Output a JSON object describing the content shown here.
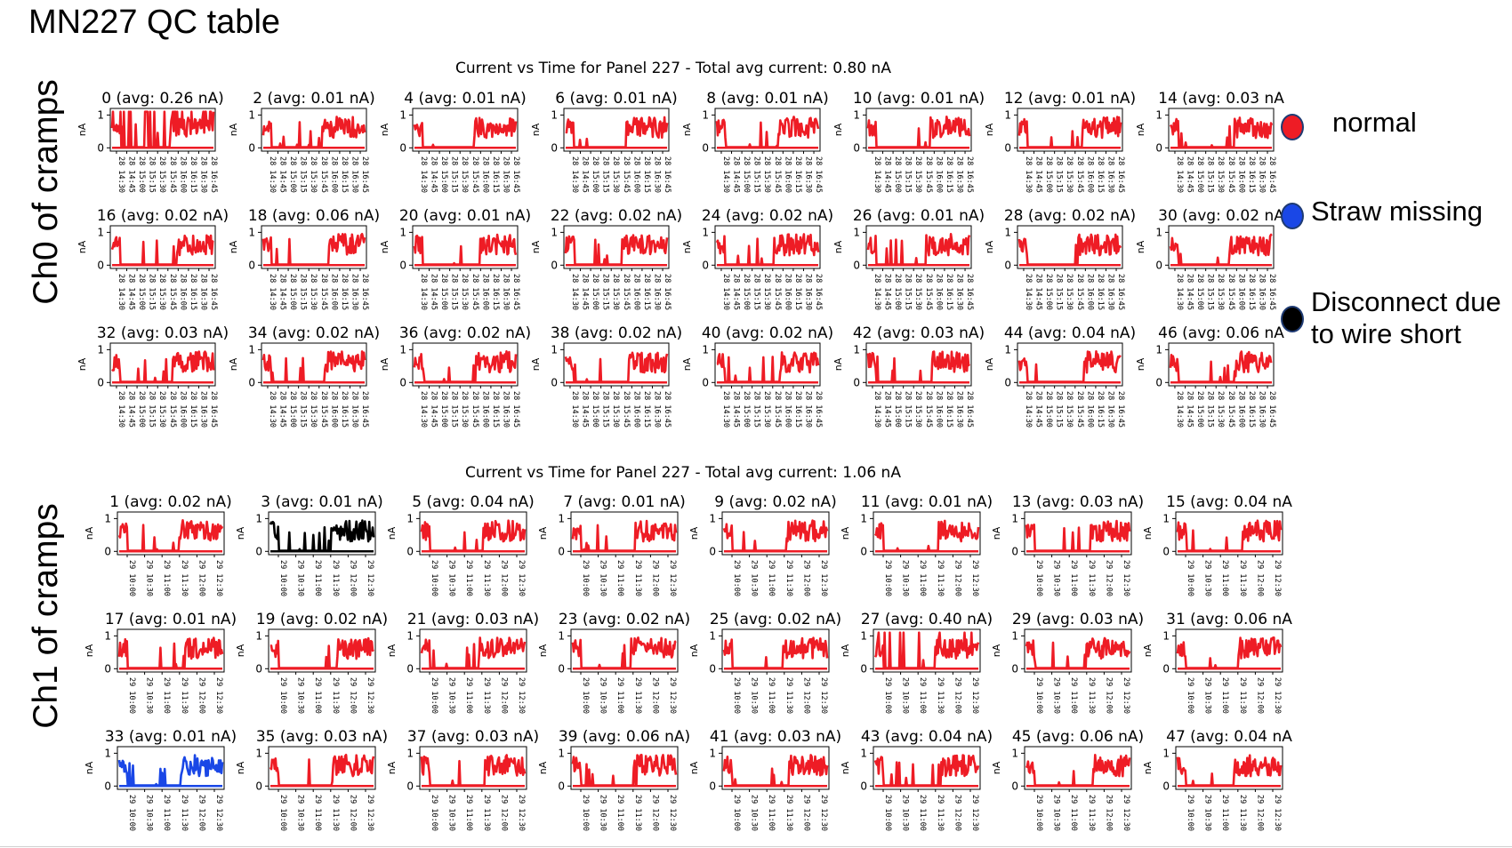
{
  "title": "MN227 QC table",
  "legend": [
    {
      "label": "normal",
      "color": "#ee1c25"
    },
    {
      "label": "Straw missing",
      "color": "#1a47e6"
    },
    {
      "label": "Disconnect due to wire short",
      "color": "#000000"
    }
  ],
  "chart_data": [
    {
      "type": "line",
      "group_label": "Ch0 of cramps",
      "title": "Current vs Time for Panel 227 - Total avg current: 0.80 nA",
      "ylabel": "nA",
      "yticks": [
        "0",
        "1"
      ],
      "ylim": [
        -0.1,
        1.2
      ],
      "xticks": [
        "28 14:30",
        "28 14:45",
        "28 15:00",
        "28 15:15",
        "28 15:30",
        "28 15:45",
        "28 16:00",
        "28 16:15",
        "28 16:30",
        "28 16:45"
      ],
      "panels": [
        {
          "title": "0 (avg: 0.26 nA)",
          "channel": 0,
          "avg_nA": 0.26,
          "status": "normal"
        },
        {
          "title": "2 (avg: 0.01 nA)",
          "channel": 2,
          "avg_nA": 0.01,
          "status": "normal"
        },
        {
          "title": "4 (avg: 0.01 nA)",
          "channel": 4,
          "avg_nA": 0.01,
          "status": "normal"
        },
        {
          "title": "6 (avg: 0.01 nA)",
          "channel": 6,
          "avg_nA": 0.01,
          "status": "normal"
        },
        {
          "title": "8 (avg: 0.01 nA)",
          "channel": 8,
          "avg_nA": 0.01,
          "status": "normal"
        },
        {
          "title": "10 (avg: 0.01 nA)",
          "channel": 10,
          "avg_nA": 0.01,
          "status": "normal"
        },
        {
          "title": "12 (avg: 0.01 nA)",
          "channel": 12,
          "avg_nA": 0.01,
          "status": "normal"
        },
        {
          "title": "14 (avg: 0.03 nA",
          "channel": 14,
          "avg_nA": 0.03,
          "status": "normal"
        },
        {
          "title": "16 (avg: 0.02 nA)",
          "channel": 16,
          "avg_nA": 0.02,
          "status": "normal"
        },
        {
          "title": "18 (avg: 0.06 nA)",
          "channel": 18,
          "avg_nA": 0.06,
          "status": "normal"
        },
        {
          "title": "20 (avg: 0.01 nA)",
          "channel": 20,
          "avg_nA": 0.01,
          "status": "normal"
        },
        {
          "title": "22 (avg: 0.02 nA)",
          "channel": 22,
          "avg_nA": 0.02,
          "status": "normal"
        },
        {
          "title": "24 (avg: 0.02 nA)",
          "channel": 24,
          "avg_nA": 0.02,
          "status": "normal"
        },
        {
          "title": "26 (avg: 0.01 nA)",
          "channel": 26,
          "avg_nA": 0.01,
          "status": "normal"
        },
        {
          "title": "28 (avg: 0.02 nA)",
          "channel": 28,
          "avg_nA": 0.02,
          "status": "normal"
        },
        {
          "title": "30 (avg: 0.02 nA",
          "channel": 30,
          "avg_nA": 0.02,
          "status": "normal"
        },
        {
          "title": "32 (avg: 0.03 nA)",
          "channel": 32,
          "avg_nA": 0.03,
          "status": "normal"
        },
        {
          "title": "34 (avg: 0.02 nA)",
          "channel": 34,
          "avg_nA": 0.02,
          "status": "normal"
        },
        {
          "title": "36 (avg: 0.02 nA)",
          "channel": 36,
          "avg_nA": 0.02,
          "status": "normal"
        },
        {
          "title": "38 (avg: 0.02 nA)",
          "channel": 38,
          "avg_nA": 0.02,
          "status": "normal"
        },
        {
          "title": "40 (avg: 0.02 nA)",
          "channel": 40,
          "avg_nA": 0.02,
          "status": "normal"
        },
        {
          "title": "42 (avg: 0.03 nA)",
          "channel": 42,
          "avg_nA": 0.03,
          "status": "normal"
        },
        {
          "title": "44 (avg: 0.04 nA)",
          "channel": 44,
          "avg_nA": 0.04,
          "status": "normal"
        },
        {
          "title": "46 (avg: 0.06 nA",
          "channel": 46,
          "avg_nA": 0.06,
          "status": "normal"
        }
      ]
    },
    {
      "type": "line",
      "group_label": "Ch1 of cramps",
      "title": "Current vs Time for Panel 227 - Total avg current: 1.06 nA",
      "ylabel": "nA",
      "yticks": [
        "0",
        "1"
      ],
      "ylim": [
        -0.1,
        1.2
      ],
      "xticks": [
        "29 10:00",
        "29 10:30",
        "29 11:00",
        "29 11:30",
        "29 12:00",
        "29 12:30"
      ],
      "panels": [
        {
          "title": "1 (avg: 0.02 nA)",
          "channel": 1,
          "avg_nA": 0.02,
          "status": "normal"
        },
        {
          "title": "3 (avg: 0.01 nA)",
          "channel": 3,
          "avg_nA": 0.01,
          "status": "disconnect"
        },
        {
          "title": "5 (avg: 0.04 nA)",
          "channel": 5,
          "avg_nA": 0.04,
          "status": "normal"
        },
        {
          "title": "7 (avg: 0.01 nA)",
          "channel": 7,
          "avg_nA": 0.01,
          "status": "normal"
        },
        {
          "title": "9 (avg: 0.02 nA)",
          "channel": 9,
          "avg_nA": 0.02,
          "status": "normal"
        },
        {
          "title": "11 (avg: 0.01 nA)",
          "channel": 11,
          "avg_nA": 0.01,
          "status": "normal"
        },
        {
          "title": "13 (avg: 0.03 nA)",
          "channel": 13,
          "avg_nA": 0.03,
          "status": "normal"
        },
        {
          "title": "15 (avg: 0.04 nA",
          "channel": 15,
          "avg_nA": 0.04,
          "status": "normal"
        },
        {
          "title": "17 (avg: 0.01 nA)",
          "channel": 17,
          "avg_nA": 0.01,
          "status": "normal"
        },
        {
          "title": "19 (avg: 0.02 nA)",
          "channel": 19,
          "avg_nA": 0.02,
          "status": "normal"
        },
        {
          "title": "21 (avg: 0.03 nA)",
          "channel": 21,
          "avg_nA": 0.03,
          "status": "normal"
        },
        {
          "title": "23 (avg: 0.02 nA)",
          "channel": 23,
          "avg_nA": 0.02,
          "status": "normal"
        },
        {
          "title": "25 (avg: 0.02 nA)",
          "channel": 25,
          "avg_nA": 0.02,
          "status": "normal"
        },
        {
          "title": "27 (avg: 0.40 nA)",
          "channel": 27,
          "avg_nA": 0.4,
          "status": "normal"
        },
        {
          "title": "29 (avg: 0.03 nA)",
          "channel": 29,
          "avg_nA": 0.03,
          "status": "normal"
        },
        {
          "title": "31 (avg: 0.06 nA",
          "channel": 31,
          "avg_nA": 0.06,
          "status": "normal"
        },
        {
          "title": "33 (avg: 0.01 nA)",
          "channel": 33,
          "avg_nA": 0.01,
          "status": "missing"
        },
        {
          "title": "35 (avg: 0.03 nA)",
          "channel": 35,
          "avg_nA": 0.03,
          "status": "normal"
        },
        {
          "title": "37 (avg: 0.03 nA)",
          "channel": 37,
          "avg_nA": 0.03,
          "status": "normal"
        },
        {
          "title": "39 (avg: 0.06 nA)",
          "channel": 39,
          "avg_nA": 0.06,
          "status": "normal"
        },
        {
          "title": "41 (avg: 0.03 nA)",
          "channel": 41,
          "avg_nA": 0.03,
          "status": "normal"
        },
        {
          "title": "43 (avg: 0.04 nA)",
          "channel": 43,
          "avg_nA": 0.04,
          "status": "normal"
        },
        {
          "title": "45 (avg: 0.06 nA)",
          "channel": 45,
          "avg_nA": 0.06,
          "status": "normal"
        },
        {
          "title": "47 (avg: 0.04 nA",
          "channel": 47,
          "avg_nA": 0.04,
          "status": "normal"
        }
      ]
    }
  ]
}
